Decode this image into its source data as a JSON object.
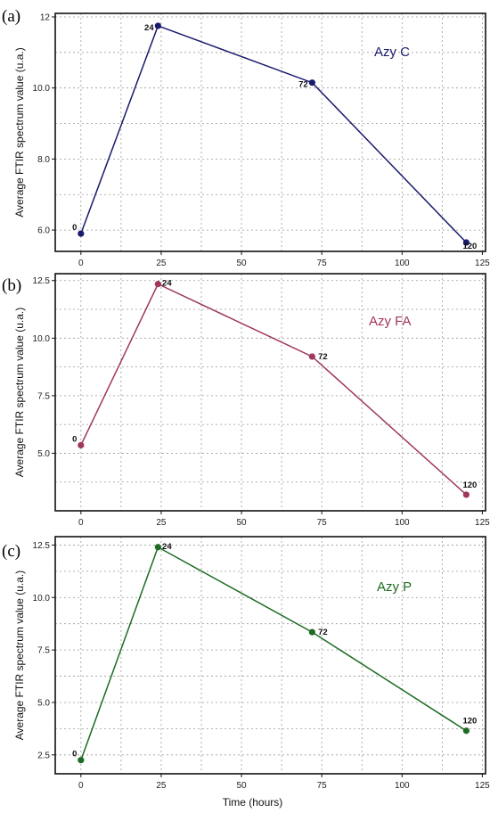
{
  "chart_data": [
    {
      "type": "line",
      "panel_letter": "(a)",
      "color": "#1a1a6e",
      "legend": "Azy C",
      "legend_position": "top-right",
      "x": [
        0,
        24,
        72,
        120
      ],
      "point_labels": [
        "0",
        "24",
        "72",
        "120"
      ],
      "values": [
        5.9,
        11.75,
        10.15,
        5.65
      ],
      "xlim": [
        -8,
        126
      ],
      "ylim": [
        5.4,
        12.1
      ],
      "xticks": [
        0,
        25,
        50,
        75,
        100,
        125
      ],
      "yticks": [
        6.0,
        8.0,
        10.0,
        12
      ],
      "ytick_labels": [
        "6.0",
        "8.0",
        "10.0",
        "12"
      ],
      "xgrid": [
        0,
        12.5,
        25,
        37.5,
        50,
        62.5,
        75,
        87.5,
        100,
        112.5,
        125
      ],
      "ygrid": [
        6,
        7,
        8,
        9,
        10,
        11,
        12
      ],
      "grid": true,
      "xlabel": "",
      "ylabel": "Average FTIR spectrum value (u.a.)"
    },
    {
      "type": "line",
      "panel_letter": "(b)",
      "color": "#a0375e",
      "legend": "Azy FA",
      "legend_position": "top-right",
      "x": [
        0,
        24,
        72,
        120
      ],
      "point_labels": [
        "0",
        "24",
        "72",
        "120"
      ],
      "values": [
        5.35,
        12.35,
        9.2,
        3.2
      ],
      "xlim": [
        -8,
        126
      ],
      "ylim": [
        2.5,
        12.8
      ],
      "xticks": [
        0,
        25,
        50,
        75,
        100,
        125
      ],
      "yticks": [
        5.0,
        7.5,
        10.0,
        12.5
      ],
      "ytick_labels": [
        "5.0",
        "7.5",
        "10.0",
        "12.5"
      ],
      "xgrid": [
        0,
        12.5,
        25,
        37.5,
        50,
        62.5,
        75,
        87.5,
        100,
        112.5,
        125
      ],
      "ygrid": [
        3.75,
        5.0,
        6.25,
        7.5,
        8.75,
        10.0,
        11.25,
        12.5
      ],
      "grid": true,
      "xlabel": "",
      "ylabel": "Average FTIR spectrum value (u.a.)"
    },
    {
      "type": "line",
      "panel_letter": "(c)",
      "color": "#1d6b22",
      "legend": "Azy P",
      "legend_position": "top-right",
      "x": [
        0,
        24,
        72,
        120
      ],
      "point_labels": [
        "0",
        "24",
        "72",
        "120"
      ],
      "values": [
        2.25,
        12.4,
        8.35,
        3.65
      ],
      "xlim": [
        -8,
        126
      ],
      "ylim": [
        1.6,
        12.9
      ],
      "xticks": [
        0,
        25,
        50,
        75,
        100,
        125
      ],
      "yticks": [
        2.5,
        5.0,
        7.5,
        10.0,
        12.5
      ],
      "ytick_labels": [
        "2.5",
        "5.0",
        "7.5",
        "10.0",
        "12.5"
      ],
      "xgrid": [
        0,
        12.5,
        25,
        37.5,
        50,
        62.5,
        75,
        87.5,
        100,
        112.5,
        125
      ],
      "ygrid": [
        2.5,
        3.75,
        5.0,
        6.25,
        7.5,
        8.75,
        10.0,
        11.25,
        12.5
      ],
      "grid": true,
      "xlabel": "Time (hours)",
      "ylabel": "Average FTIR spectrum value (u.a.)"
    }
  ]
}
